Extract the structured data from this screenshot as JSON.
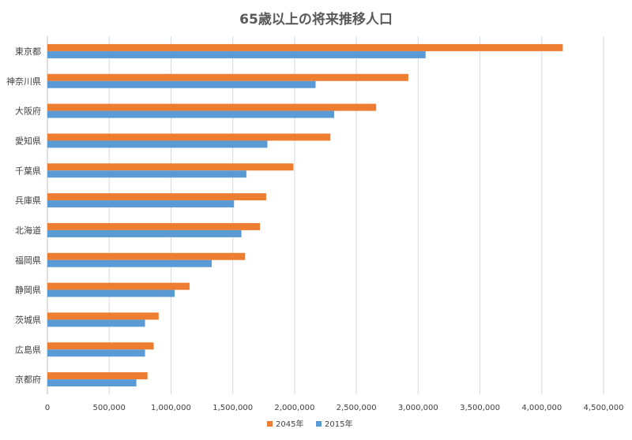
{
  "chart_data": {
    "type": "bar",
    "orientation": "horizontal",
    "title": "65歳以上の将来推移人口",
    "xlabel": "",
    "ylabel": "",
    "categories": [
      "東京都",
      "神奈川県",
      "大阪府",
      "愛知県",
      "千葉県",
      "兵庫県",
      "北海道",
      "福岡県",
      "静岡県",
      "茨城県",
      "広島県",
      "京都府"
    ],
    "series": [
      {
        "name": "2045年",
        "color": "#ED7D31",
        "values": [
          4170000,
          2920000,
          2660000,
          2290000,
          1990000,
          1770000,
          1720000,
          1600000,
          1150000,
          900000,
          860000,
          810000
        ]
      },
      {
        "name": "2015年",
        "color": "#5B9BD5",
        "values": [
          3060000,
          2170000,
          2320000,
          1780000,
          1610000,
          1510000,
          1570000,
          1330000,
          1030000,
          790000,
          790000,
          720000
        ]
      }
    ],
    "xlim": [
      0,
      4500000
    ],
    "xticks": [
      "0",
      "500,000",
      "1,000,000",
      "1,500,000",
      "2,000,000",
      "2,500,000",
      "3,000,000",
      "3,500,000",
      "4,000,000",
      "4,500,000"
    ],
    "grid": true,
    "legend_position": "bottom"
  }
}
